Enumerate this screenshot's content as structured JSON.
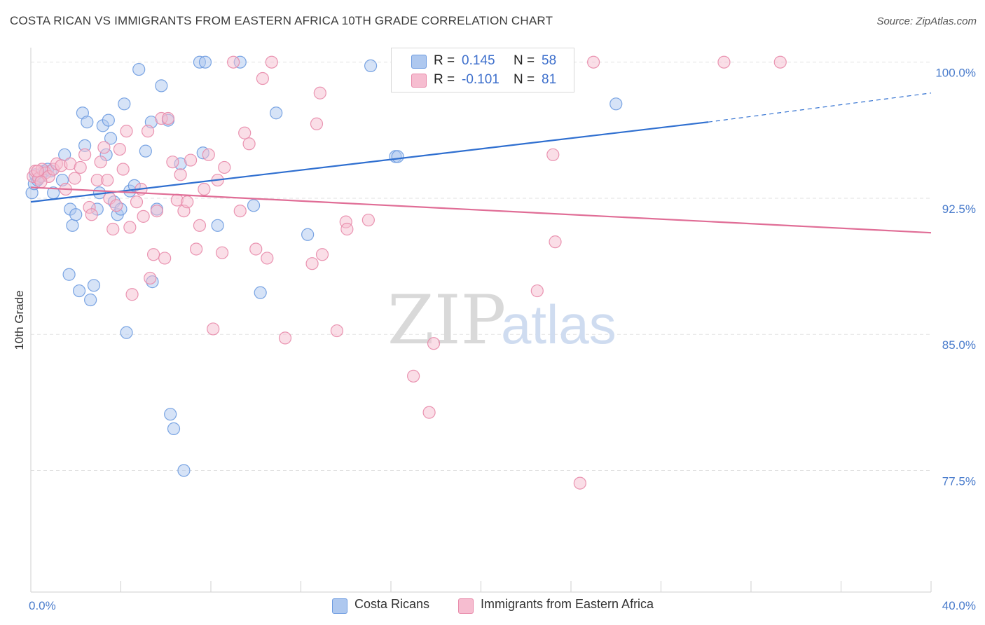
{
  "header": {
    "title": "COSTA RICAN VS IMMIGRANTS FROM EASTERN AFRICA 10TH GRADE CORRELATION CHART",
    "source": "Source: ZipAtlas.com"
  },
  "legend": {
    "series": [
      {
        "name": "Costa Ricans",
        "r_label": "R =",
        "r_value": "0.145",
        "n_label": "N =",
        "n_value": "58"
      },
      {
        "name": "Immigrants from Eastern Africa",
        "r_label": "R =",
        "r_value": "-0.101",
        "n_label": "N =",
        "n_value": "81"
      }
    ]
  },
  "watermark": {
    "zip": "ZIP",
    "atlas": "atlas"
  },
  "colors": {
    "blue_fill": "#aec8ef",
    "blue_stroke": "#6d9be0",
    "blue_line": "#2f6fd0",
    "pink_fill": "#f6bdd0",
    "pink_stroke": "#e88aaa",
    "pink_line": "#e06d96",
    "grid": "#e2e2e2",
    "tick_text": "#4a7ccc"
  },
  "chart_data": {
    "type": "scatter",
    "title": "COSTA RICAN VS IMMIGRANTS FROM EASTERN AFRICA 10TH GRADE CORRELATION CHART",
    "xlabel": "",
    "ylabel": "10th Grade",
    "xlim": [
      0,
      40
    ],
    "ylim": [
      70.8,
      100.8
    ],
    "x_tick_labels": [
      {
        "value": 0,
        "label": "0.0%"
      },
      {
        "value": 40,
        "label": "40.0%"
      }
    ],
    "x_minor_ticks": [
      0,
      4,
      8,
      12,
      16,
      20,
      24,
      28,
      32,
      36,
      40
    ],
    "y_ticks": [
      {
        "value": 100.0,
        "label": "100.0%"
      },
      {
        "value": 92.5,
        "label": "92.5%"
      },
      {
        "value": 85.0,
        "label": "85.0%"
      },
      {
        "value": 77.5,
        "label": "77.5%"
      }
    ],
    "grid": true,
    "series": [
      {
        "name": "Costa Ricans",
        "color": "blue",
        "points": [
          [
            0.05,
            92.8
          ],
          [
            0.15,
            93.3
          ],
          [
            0.3,
            93.5
          ],
          [
            0.45,
            93.7
          ],
          [
            0.6,
            94.0
          ],
          [
            0.75,
            94.1
          ],
          [
            0.9,
            94.0
          ],
          [
            1.0,
            92.8
          ],
          [
            1.4,
            93.5
          ],
          [
            1.5,
            94.9
          ],
          [
            1.7,
            88.3
          ],
          [
            1.75,
            91.9
          ],
          [
            1.85,
            91.0
          ],
          [
            2.0,
            91.6
          ],
          [
            2.15,
            87.4
          ],
          [
            2.3,
            97.2
          ],
          [
            2.4,
            95.4
          ],
          [
            2.5,
            96.7
          ],
          [
            2.65,
            86.9
          ],
          [
            2.8,
            87.7
          ],
          [
            2.95,
            91.9
          ],
          [
            3.05,
            92.8
          ],
          [
            3.2,
            96.5
          ],
          [
            3.35,
            94.9
          ],
          [
            3.45,
            96.8
          ],
          [
            3.55,
            95.8
          ],
          [
            3.7,
            92.3
          ],
          [
            3.85,
            91.6
          ],
          [
            4.0,
            91.9
          ],
          [
            4.15,
            97.7
          ],
          [
            4.25,
            85.1
          ],
          [
            4.4,
            92.9
          ],
          [
            4.6,
            93.2
          ],
          [
            4.8,
            99.6
          ],
          [
            5.1,
            95.1
          ],
          [
            5.35,
            96.7
          ],
          [
            5.4,
            87.9
          ],
          [
            5.6,
            91.9
          ],
          [
            5.8,
            98.7
          ],
          [
            6.1,
            96.8
          ],
          [
            6.2,
            80.6
          ],
          [
            6.35,
            79.8
          ],
          [
            6.65,
            94.4
          ],
          [
            6.8,
            77.5
          ],
          [
            7.5,
            100.0
          ],
          [
            7.65,
            95.0
          ],
          [
            7.75,
            100.0
          ],
          [
            8.3,
            91.0
          ],
          [
            9.3,
            100.0
          ],
          [
            9.9,
            92.1
          ],
          [
            10.2,
            87.3
          ],
          [
            10.9,
            97.2
          ],
          [
            12.3,
            90.5
          ],
          [
            15.1,
            99.8
          ],
          [
            16.2,
            94.8
          ],
          [
            16.3,
            94.8
          ],
          [
            26.0,
            97.7
          ],
          [
            0.2,
            93.8
          ]
        ]
      },
      {
        "name": "Immigrants from Eastern Africa",
        "color": "pink",
        "points": [
          [
            0.1,
            93.7
          ],
          [
            0.2,
            94.0
          ],
          [
            0.35,
            93.6
          ],
          [
            0.5,
            94.1
          ],
          [
            0.65,
            93.9
          ],
          [
            0.8,
            93.7
          ],
          [
            1.0,
            94.1
          ],
          [
            1.15,
            94.4
          ],
          [
            1.35,
            94.3
          ],
          [
            1.55,
            93.0
          ],
          [
            1.75,
            94.4
          ],
          [
            1.95,
            93.6
          ],
          [
            2.2,
            94.2
          ],
          [
            2.4,
            94.9
          ],
          [
            2.6,
            92.0
          ],
          [
            2.7,
            91.6
          ],
          [
            2.95,
            93.5
          ],
          [
            3.1,
            94.5
          ],
          [
            3.25,
            95.3
          ],
          [
            3.4,
            93.5
          ],
          [
            3.5,
            92.5
          ],
          [
            3.65,
            90.8
          ],
          [
            3.8,
            92.1
          ],
          [
            3.95,
            95.2
          ],
          [
            4.1,
            94.1
          ],
          [
            4.25,
            96.2
          ],
          [
            4.4,
            90.9
          ],
          [
            4.5,
            87.2
          ],
          [
            4.7,
            92.3
          ],
          [
            4.9,
            93.0
          ],
          [
            5.0,
            91.5
          ],
          [
            5.2,
            96.2
          ],
          [
            5.3,
            88.1
          ],
          [
            5.45,
            89.4
          ],
          [
            5.6,
            91.8
          ],
          [
            5.8,
            96.9
          ],
          [
            5.95,
            89.2
          ],
          [
            6.1,
            96.9
          ],
          [
            6.3,
            94.5
          ],
          [
            6.5,
            92.4
          ],
          [
            6.65,
            93.8
          ],
          [
            6.8,
            91.8
          ],
          [
            6.95,
            92.3
          ],
          [
            7.1,
            94.6
          ],
          [
            7.35,
            89.7
          ],
          [
            7.5,
            91.0
          ],
          [
            7.7,
            93.0
          ],
          [
            7.9,
            94.9
          ],
          [
            8.1,
            85.3
          ],
          [
            8.3,
            93.5
          ],
          [
            8.5,
            89.5
          ],
          [
            8.6,
            94.2
          ],
          [
            9.0,
            100.0
          ],
          [
            9.3,
            91.8
          ],
          [
            9.5,
            96.1
          ],
          [
            9.7,
            95.5
          ],
          [
            10.0,
            89.7
          ],
          [
            10.3,
            99.1
          ],
          [
            10.5,
            89.2
          ],
          [
            10.7,
            100.0
          ],
          [
            11.3,
            84.8
          ],
          [
            12.5,
            88.9
          ],
          [
            12.7,
            96.6
          ],
          [
            12.85,
            98.3
          ],
          [
            12.95,
            89.4
          ],
          [
            13.6,
            85.2
          ],
          [
            14.0,
            91.2
          ],
          [
            14.05,
            90.8
          ],
          [
            15.0,
            91.3
          ],
          [
            17.0,
            82.7
          ],
          [
            17.7,
            80.7
          ],
          [
            17.9,
            84.5
          ],
          [
            22.5,
            87.4
          ],
          [
            23.2,
            94.9
          ],
          [
            23.3,
            90.1
          ],
          [
            24.4,
            76.8
          ],
          [
            25.0,
            100.0
          ],
          [
            30.8,
            100.0
          ],
          [
            33.3,
            100.0
          ],
          [
            0.3,
            94.0
          ],
          [
            0.45,
            93.4
          ]
        ]
      }
    ],
    "trend_lines": [
      {
        "series": "Costa Ricans",
        "x0": 0,
        "y0": 92.3,
        "x1": 30.1,
        "y1": 96.7,
        "dashed_to_x": 40,
        "dashed_to_y": 98.3
      },
      {
        "series": "Immigrants from Eastern Africa",
        "x0": 0,
        "y0": 93.1,
        "x1": 40,
        "y1": 90.6
      }
    ]
  }
}
